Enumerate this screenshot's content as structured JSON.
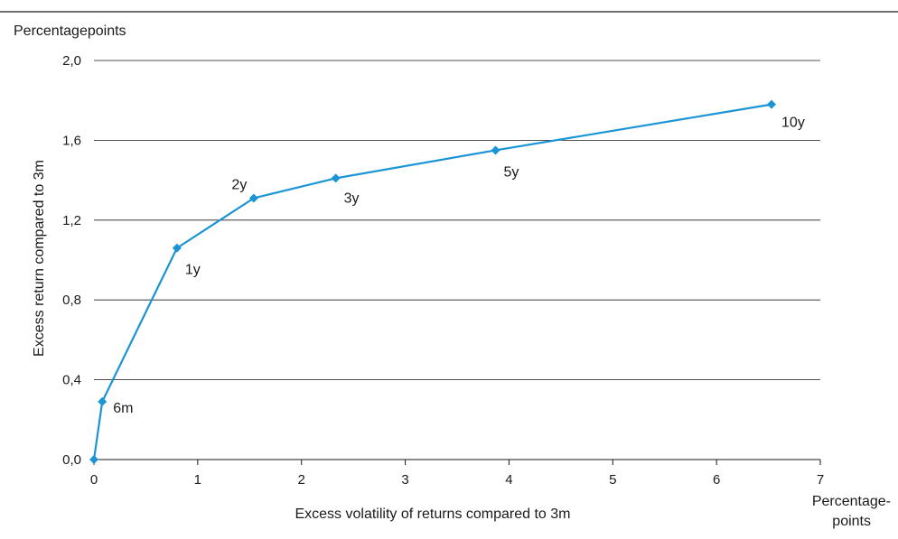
{
  "chart_data": {
    "type": "line",
    "title": "",
    "y_unit_label": "Percentagepoints",
    "ylabel": "Excess return compared to 3m",
    "xlabel": "Excess volatility of returns compared to 3m",
    "x_unit_label_line1": "Percentage-",
    "x_unit_label_line2": "points",
    "xlim": [
      0,
      7
    ],
    "ylim": [
      0,
      2.0
    ],
    "x_ticks": [
      0,
      1,
      2,
      3,
      4,
      5,
      6,
      7
    ],
    "x_tick_labels": [
      "0",
      "1",
      "2",
      "3",
      "4",
      "5",
      "6",
      "7"
    ],
    "y_ticks": [
      0,
      0.4,
      0.8,
      1.2,
      1.6,
      2.0
    ],
    "y_tick_labels": [
      "0,0",
      "0,4",
      "0,8",
      "1,2",
      "1,6",
      "2,0"
    ],
    "grid": "horizontal",
    "series_color": "#1a94d4",
    "points": [
      {
        "label": "",
        "x": 0.0,
        "y": 0.0
      },
      {
        "label": "6m",
        "x": 0.08,
        "y": 0.29
      },
      {
        "label": "1y",
        "x": 0.8,
        "y": 1.06
      },
      {
        "label": "2y",
        "x": 1.54,
        "y": 1.31
      },
      {
        "label": "3y",
        "x": 2.33,
        "y": 1.41
      },
      {
        "label": "5y",
        "x": 3.87,
        "y": 1.55
      },
      {
        "label": "10y",
        "x": 6.53,
        "y": 1.78
      }
    ]
  }
}
